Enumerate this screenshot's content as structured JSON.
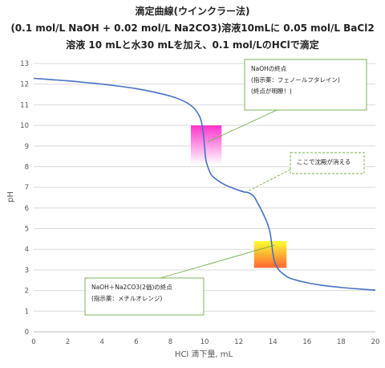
{
  "colors": {
    "curve": "#4472C4",
    "grid": "#d9d9d9",
    "callout_border": "#70AD47",
    "naoh_box_top": "#FF33CC",
    "naoh_box_bottom": "#FFFFFF",
    "nahco3_box_top": "#FFFF33",
    "nahco3_box_bottom": "#FF6633"
  },
  "chart_data": {
    "type": "line",
    "title": [
      "滴定曲線(ウインクラー法)",
      "(0.1 mol/L NaOH + 0.02 mol/L Na2CO3)溶液10mLに 0.05 mol/L BaCl2",
      "溶液 10 mLと水30 mLを加え、0.1 mol/LのHClで滴定"
    ],
    "xlabel": "HCl 滴下量, mL",
    "ylabel": "pH",
    "xlim": [
      0,
      20
    ],
    "ylim": [
      0,
      13
    ],
    "xticks": [
      "0",
      "2",
      "4",
      "6",
      "8",
      "10",
      "12",
      "14",
      "16",
      "18",
      "20"
    ],
    "yticks": [
      "0",
      "1",
      "2",
      "3",
      "4",
      "5",
      "6",
      "7",
      "8",
      "9",
      "10",
      "11",
      "12",
      "13"
    ],
    "grid": "horizontal",
    "series": [
      {
        "x": [
          0,
          1,
          2,
          3,
          4,
          5,
          6,
          7,
          8,
          8.5,
          9,
          9.3,
          9.5,
          9.7,
          9.8,
          9.9,
          10.0,
          10.05,
          10.1,
          10.2,
          10.4,
          10.8,
          11.2,
          11.6,
          12.0,
          12.3,
          12.6,
          12.9,
          13.1,
          13.3,
          13.5,
          13.7,
          13.85,
          14.0,
          14.1,
          14.2,
          14.4,
          14.7,
          15,
          16,
          17,
          18,
          19,
          20
        ],
        "y": [
          12.28,
          12.22,
          12.16,
          12.08,
          12.0,
          11.9,
          11.78,
          11.62,
          11.42,
          11.28,
          11.08,
          10.9,
          10.72,
          10.45,
          10.22,
          9.8,
          9.0,
          8.5,
          8.25,
          7.98,
          7.6,
          7.32,
          7.12,
          6.98,
          6.86,
          6.78,
          6.73,
          6.55,
          6.25,
          5.95,
          5.6,
          5.2,
          4.75,
          3.8,
          3.4,
          3.2,
          2.95,
          2.75,
          2.6,
          2.38,
          2.24,
          2.15,
          2.08,
          2.02
        ]
      }
    ],
    "highlight_boxes": [
      {
        "name": "naoh-endpoint-box",
        "x": [
          9.2,
          11.0
        ],
        "y": [
          8.1,
          10.0
        ]
      },
      {
        "name": "na2co3-endpoint-box",
        "x": [
          12.9,
          14.8
        ],
        "y": [
          3.1,
          4.4
        ]
      }
    ],
    "annotations": [
      {
        "name": "naoh-callout",
        "lines": [
          "NaOHの終点",
          "(指示薬：フェノールフタレイン)",
          "(終点が明瞭！)"
        ],
        "style": "solid",
        "target": [
          10.2,
          9.2
        ]
      },
      {
        "name": "precipitate-callout",
        "lines": [
          "ここで沈殿が消える"
        ],
        "style": "dashed",
        "target": [
          12.5,
          6.8
        ]
      },
      {
        "name": "na2co3-callout",
        "lines": [
          "NaOH＋Na2CO3(2価)の終点",
          "(指示薬：メチルオレンジ)"
        ],
        "style": "solid",
        "target": [
          14.1,
          4.2
        ]
      }
    ]
  }
}
